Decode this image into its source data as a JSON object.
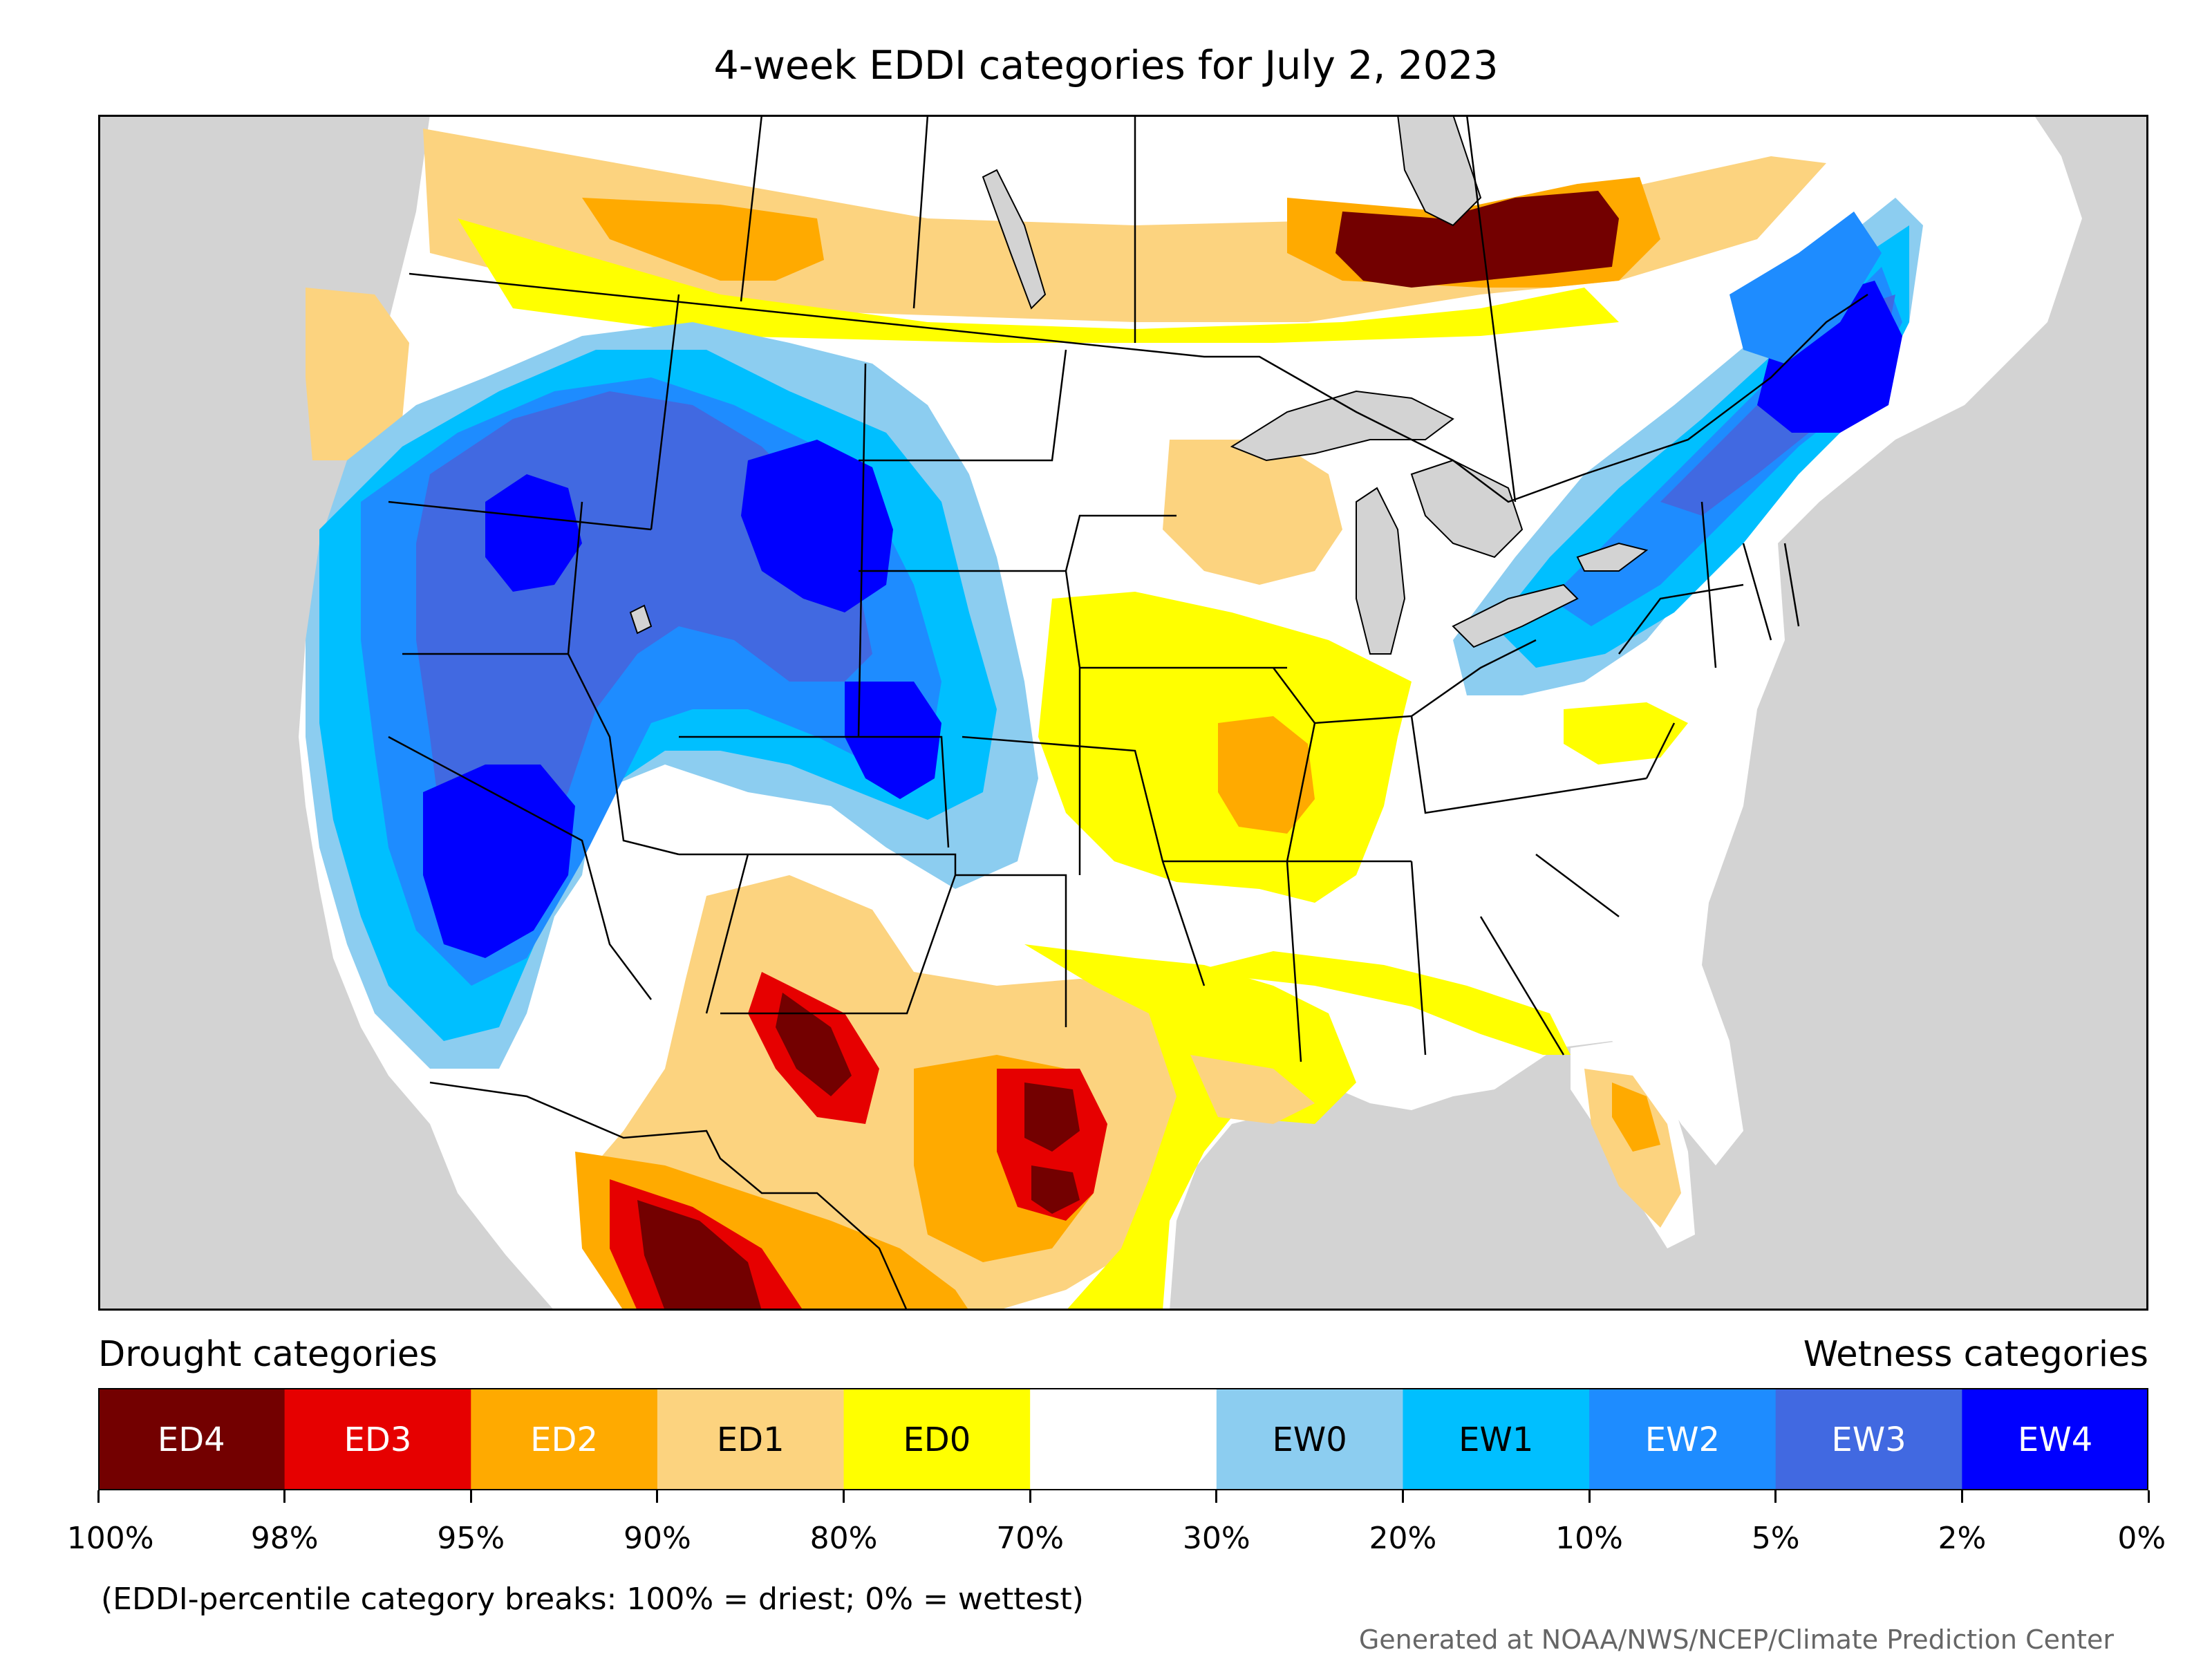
{
  "title": "4-week EDDI categories for July 2, 2023",
  "legend": {
    "drought_heading": "Drought categories",
    "wetness_heading": "Wetness categories",
    "categories": [
      {
        "label": "ED4",
        "color": "#730000",
        "text_color": "#ffffff"
      },
      {
        "label": "ED3",
        "color": "#e60000",
        "text_color": "#ffffff"
      },
      {
        "label": "ED2",
        "color": "#ffaa00",
        "text_color": "#ffffff"
      },
      {
        "label": "ED1",
        "color": "#fcd37f",
        "text_color": "#000000"
      },
      {
        "label": "ED0",
        "color": "#ffff00",
        "text_color": "#000000"
      },
      {
        "label": "",
        "color": "#ffffff",
        "text_color": "#000000"
      },
      {
        "label": "EW0",
        "color": "#8ccdf0",
        "text_color": "#000000"
      },
      {
        "label": "EW1",
        "color": "#00bfff",
        "text_color": "#000000"
      },
      {
        "label": "EW2",
        "color": "#1e8cff",
        "text_color": "#ffffff"
      },
      {
        "label": "EW3",
        "color": "#4169e1",
        "text_color": "#ffffff"
      },
      {
        "label": "EW4",
        "color": "#0000ff",
        "text_color": "#ffffff"
      }
    ],
    "ticks": [
      "100%",
      "98%",
      "95%",
      "90%",
      "80%",
      "70%",
      "30%",
      "20%",
      "10%",
      "5%",
      "2%",
      "0%"
    ]
  },
  "note": "(EDDI-percentile category breaks: 100% = driest; 0% = wettest)",
  "credit": "Generated at NOAA/NWS/NCEP/Climate Prediction Center",
  "map": {
    "background_color": "#d3d3d3",
    "land_color": "#ffffff",
    "regions": [
      {
        "name": "central-canada-extreme-drought",
        "category": "ED4"
      },
      {
        "name": "big-bend-extreme-drought",
        "category": "ED4"
      },
      {
        "name": "mexico-extreme-drought",
        "category": "ED4"
      },
      {
        "name": "east-texas-extreme-drought",
        "category": "ED4"
      },
      {
        "name": "wyoming-extreme-wetness",
        "category": "EW4"
      },
      {
        "name": "california-nevada-extreme-wetness",
        "category": "EW4"
      },
      {
        "name": "new-england-extreme-wetness",
        "category": "EW4"
      },
      {
        "name": "colorado-extreme-wetness",
        "category": "EW4"
      },
      {
        "name": "idaho-oregon-extreme-wetness",
        "category": "EW4"
      }
    ]
  }
}
